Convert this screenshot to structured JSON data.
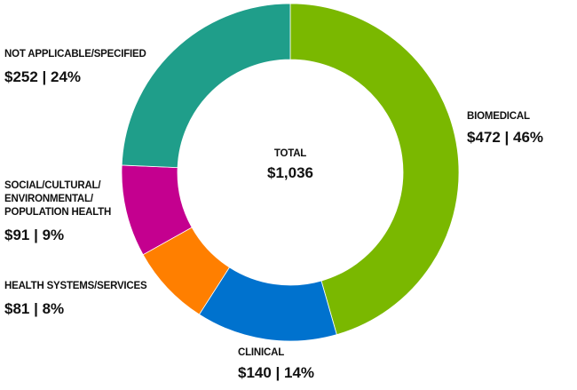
{
  "chart_data": {
    "type": "pie",
    "variant": "donut",
    "start": "top",
    "direction": "clockwise",
    "center_label": {
      "title": "TOTAL",
      "value": "$1,036"
    },
    "slices": [
      {
        "name": "BIOMEDICAL",
        "value": 472,
        "display": "$472 | 46%",
        "color": "#7ab800"
      },
      {
        "name": "CLINICAL",
        "value": 140,
        "display": "$140 | 14%",
        "color": "#0072ce"
      },
      {
        "name": "HEALTH SYSTEMS/SERVICES",
        "value": 81,
        "display": "$81 | 8%",
        "color": "#ff7f00"
      },
      {
        "name": "SOCIAL/CULTURAL/\nENVIRONMENTAL/\nPOPULATION HEALTH",
        "value": 91,
        "display": "$91 | 9%",
        "color": "#c4008f"
      },
      {
        "name": "NOT APPLICABLE/SPECIFIED",
        "value": 252,
        "display": "$252 | 24%",
        "color": "#1f9e8a"
      }
    ]
  }
}
